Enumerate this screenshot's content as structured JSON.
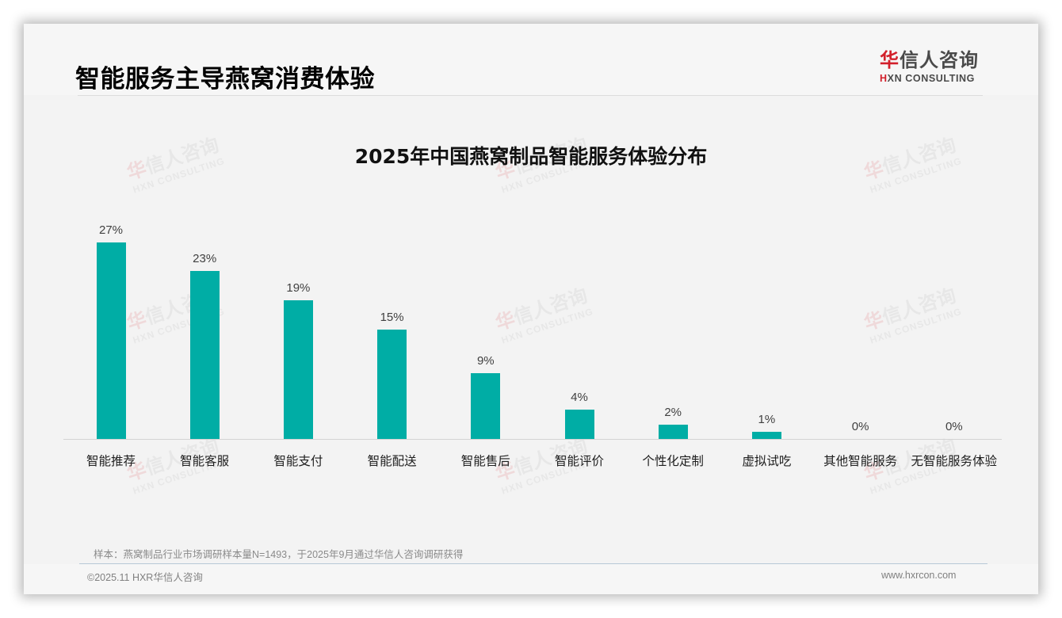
{
  "header": {
    "title": "智能服务主导燕窝消费体验",
    "logo": {
      "cn_accent": "华",
      "cn_rest": "信人咨询",
      "en_accent": "H",
      "en_rest": "XN CONSULTING"
    }
  },
  "watermark": {
    "cn_accent": "华",
    "cn_rest": "信人咨询",
    "en": "HXN CONSULTING"
  },
  "colors": {
    "bar": "#00ada5",
    "brand_red": "#d21f2a",
    "background": "#f3f3f3"
  },
  "chart_data": {
    "type": "bar",
    "title": "2025年中国燕窝制品智能服务体验分布",
    "xlabel": "",
    "ylabel": "",
    "categories": [
      "智能推荐",
      "智能客服",
      "智能支付",
      "智能配送",
      "智能售后",
      "智能评价",
      "个性化定制",
      "虚拟试吃",
      "其他智能服务",
      "无智能服务体验"
    ],
    "values": [
      27,
      23,
      19,
      15,
      9,
      4,
      2,
      1,
      0,
      0
    ],
    "value_labels": [
      "27%",
      "23%",
      "19%",
      "15%",
      "9%",
      "4%",
      "2%",
      "1%",
      "0%",
      "0%"
    ],
    "unit": "%",
    "ylim": [
      0,
      30
    ],
    "grid": false,
    "legend": null,
    "color": "#00ada5"
  },
  "footer": {
    "note": "样本：燕窝制品行业市场调研样本量N=1493，于2025年9月通过华信人咨询调研获得",
    "copyright": "©2025.11 HXR华信人咨询",
    "website": "www.hxrcon.com"
  }
}
